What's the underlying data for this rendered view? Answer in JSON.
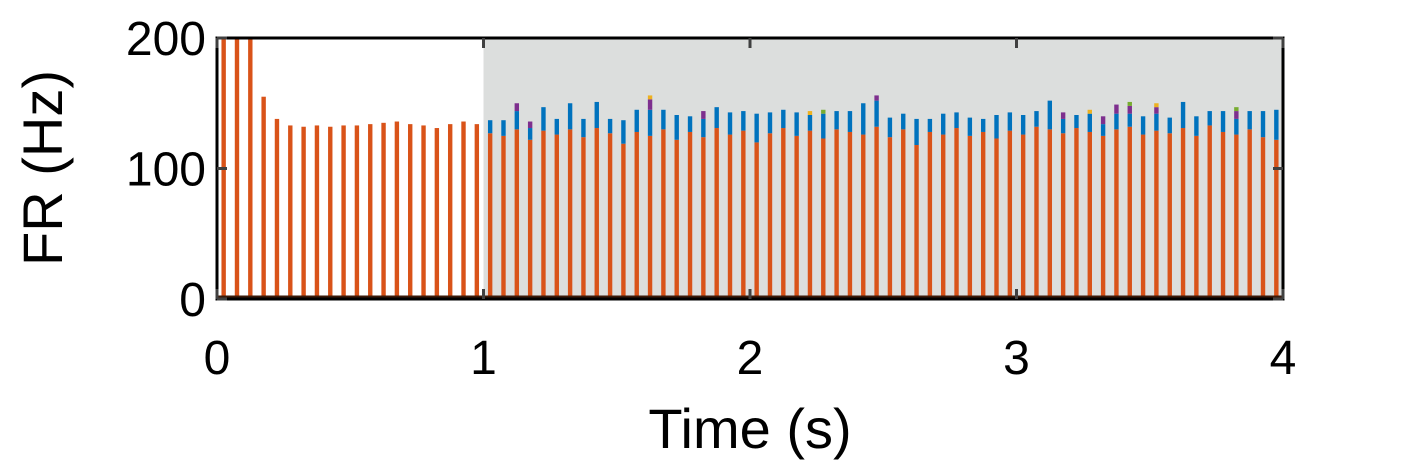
{
  "chart_data": {
    "type": "bar",
    "title": "",
    "xlabel": "Time (s)",
    "ylabel": "FR (Hz)",
    "xlim": [
      0,
      4
    ],
    "ylim": [
      0,
      200
    ],
    "xticks": [
      "0",
      "1",
      "2",
      "3",
      "4"
    ],
    "yticks": [
      "0",
      "100",
      "200"
    ],
    "grid": false,
    "legend": "none",
    "shaded_region": {
      "x_start": 1,
      "x_end": 4,
      "color": "#dcdedd"
    },
    "bin_width_s": 0.025,
    "colors": {
      "orange": "#d95319",
      "blue": "#0072bd",
      "purple": "#7e2f8e",
      "yellow": "#edb120",
      "green": "#77ac30"
    },
    "series": [
      {
        "color": "#d95319",
        "x": [
          0.025,
          0.075,
          0.125,
          0.175,
          0.225,
          0.275,
          0.325,
          0.375,
          0.425,
          0.475,
          0.525,
          0.575,
          0.625,
          0.675,
          0.725,
          0.775,
          0.825,
          0.875,
          0.925,
          0.975,
          1.025,
          1.075,
          1.125,
          1.175,
          1.225,
          1.275,
          1.325,
          1.375,
          1.425,
          1.475,
          1.525,
          1.575,
          1.625,
          1.675,
          1.725,
          1.775,
          1.825,
          1.875,
          1.925,
          1.975,
          2.025,
          2.075,
          2.125,
          2.175,
          2.225,
          2.275,
          2.325,
          2.375,
          2.425,
          2.475,
          2.525,
          2.575,
          2.625,
          2.675,
          2.725,
          2.775,
          2.825,
          2.875,
          2.925,
          2.975,
          3.025,
          3.075,
          3.125,
          3.175,
          3.225,
          3.275,
          3.325,
          3.375,
          3.425,
          3.475,
          3.525,
          3.575,
          3.625,
          3.675,
          3.725,
          3.775,
          3.825,
          3.875,
          3.925,
          3.975
        ],
        "values": [
          200,
          200,
          200,
          155,
          138,
          133,
          132,
          133,
          132,
          133,
          133,
          134,
          135,
          136,
          134,
          133,
          131,
          134,
          136,
          134,
          127,
          125,
          130,
          122,
          129,
          126,
          130,
          124,
          131,
          127,
          119,
          128,
          125,
          130,
          122,
          128,
          124,
          131,
          126,
          129,
          120,
          127,
          131,
          125,
          129,
          123,
          130,
          128,
          126,
          132,
          124,
          130,
          118,
          128,
          126,
          131,
          125,
          128,
          123,
          129,
          126,
          132,
          130,
          127,
          131,
          128,
          125,
          130,
          132,
          126,
          129,
          127,
          131,
          125,
          133,
          128,
          126,
          130,
          124,
          122
        ]
      },
      {
        "color": "#0072bd",
        "x": [
          1.025,
          1.075,
          1.125,
          1.175,
          1.225,
          1.275,
          1.325,
          1.375,
          1.425,
          1.475,
          1.525,
          1.575,
          1.625,
          1.675,
          1.725,
          1.775,
          1.825,
          1.875,
          1.925,
          1.975,
          2.025,
          2.075,
          2.125,
          2.175,
          2.225,
          2.275,
          2.325,
          2.375,
          2.425,
          2.475,
          2.525,
          2.575,
          2.625,
          2.675,
          2.725,
          2.775,
          2.825,
          2.875,
          2.925,
          2.975,
          3.025,
          3.075,
          3.125,
          3.175,
          3.225,
          3.275,
          3.325,
          3.375,
          3.425,
          3.475,
          3.525,
          3.575,
          3.625,
          3.675,
          3.725,
          3.775,
          3.825,
          3.875,
          3.925,
          3.975
        ],
        "values": [
          10,
          12,
          14,
          9,
          18,
          12,
          20,
          14,
          20,
          11,
          18,
          17,
          20,
          15,
          19,
          12,
          14,
          16,
          17,
          15,
          22,
          16,
          14,
          18,
          12,
          19,
          14,
          16,
          24,
          20,
          15,
          12,
          20,
          10,
          16,
          12,
          14,
          10,
          18,
          14,
          15,
          12,
          22,
          11,
          10,
          14,
          9,
          12,
          10,
          14,
          13,
          12,
          20,
          15,
          11,
          16,
          12,
          14,
          20,
          23
        ]
      },
      {
        "color": "#7e2f8e",
        "x": [
          1.125,
          1.175,
          1.625,
          1.825,
          2.475,
          3.175,
          3.325,
          3.375,
          3.425,
          3.525,
          3.825
        ],
        "values": [
          6,
          5,
          8,
          6,
          4,
          5,
          6,
          7,
          6,
          5,
          6
        ]
      },
      {
        "color": "#edb120",
        "x": [
          1.625,
          2.225,
          3.275,
          3.525
        ],
        "values": [
          3,
          3,
          3,
          3
        ]
      },
      {
        "color": "#77ac30",
        "x": [
          2.275,
          3.425,
          3.825
        ],
        "values": [
          3,
          3,
          3
        ]
      }
    ]
  }
}
